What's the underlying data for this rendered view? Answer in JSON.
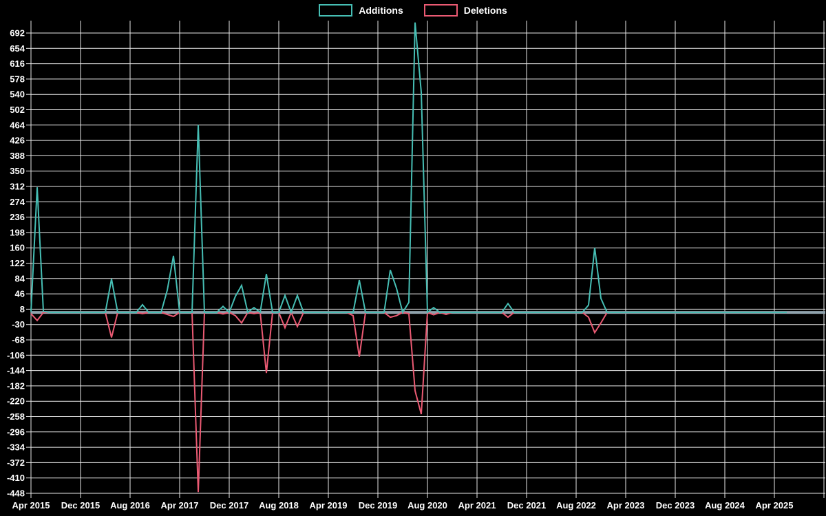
{
  "legend": {
    "items": [
      {
        "label": "Additions",
        "color": "#46beb4"
      },
      {
        "label": "Deletions",
        "color": "#eb5a73"
      }
    ]
  },
  "colors": {
    "background": "#000000",
    "grid": "#e9e9e9",
    "zero_axis_line": "#8fa2ac",
    "additions": "#46beb4",
    "deletions": "#eb5a73",
    "text": "#ffffff"
  },
  "chart_data": {
    "type": "line",
    "title": "",
    "xlabel": "",
    "ylabel": "",
    "grid": true,
    "legend_position": "top-center",
    "ylim": [
      -448,
      692
    ],
    "y_ticks": [
      692,
      654,
      616,
      578,
      540,
      502,
      464,
      426,
      388,
      350,
      312,
      274,
      236,
      198,
      160,
      122,
      84,
      46,
      8,
      -30,
      -68,
      -106,
      -144,
      -182,
      -220,
      -258,
      -296,
      -334,
      -372,
      -410,
      -448
    ],
    "x_start": "Apr 2015",
    "x_months_count": 123,
    "x_tick_interval_months": 8,
    "x_tick_labels": [
      "Apr 2015",
      "Dec 2015",
      "Aug 2016",
      "Apr 2017",
      "Dec 2017",
      "Aug 2018",
      "Apr 2019",
      "Dec 2019",
      "Aug 2020",
      "Apr 2021",
      "Dec 2021",
      "Aug 2022",
      "Apr 2023",
      "Dec 2023",
      "Aug 2024",
      "Apr 2025"
    ],
    "series": [
      {
        "name": "Additions",
        "color": "#46beb4",
        "values": [
          2,
          310,
          3,
          0,
          0,
          0,
          0,
          0,
          0,
          0,
          0,
          0,
          0,
          83,
          0,
          0,
          0,
          0,
          19,
          0,
          0,
          0,
          55,
          140,
          0,
          0,
          0,
          464,
          0,
          0,
          0,
          15,
          0,
          40,
          67,
          0,
          12,
          0,
          95,
          0,
          0,
          42,
          0,
          42,
          0,
          0,
          0,
          0,
          0,
          0,
          0,
          0,
          0,
          80,
          0,
          0,
          0,
          0,
          105,
          60,
          0,
          25,
          718,
          545,
          0,
          12,
          0,
          0,
          0,
          0,
          0,
          0,
          0,
          0,
          0,
          0,
          0,
          22,
          0,
          0,
          0,
          0,
          0,
          0,
          0,
          0,
          0,
          0,
          0,
          0,
          18,
          160,
          35,
          0,
          0,
          0,
          0,
          0,
          0,
          0,
          0,
          0,
          0,
          0,
          0,
          0,
          0,
          0,
          0,
          0,
          0,
          0,
          0,
          0,
          0,
          0,
          0,
          0,
          0,
          0,
          0,
          0,
          0
        ]
      },
      {
        "name": "Deletions",
        "color": "#eb5a73",
        "values": [
          -3,
          -20,
          0,
          0,
          0,
          0,
          0,
          0,
          0,
          0,
          0,
          0,
          0,
          -62,
          0,
          0,
          0,
          0,
          -3,
          0,
          0,
          0,
          -5,
          -10,
          0,
          0,
          0,
          -445,
          0,
          0,
          0,
          -4,
          0,
          -8,
          -26,
          0,
          -3,
          0,
          -150,
          0,
          0,
          -38,
          0,
          -35,
          0,
          0,
          0,
          0,
          0,
          0,
          0,
          0,
          -8,
          -110,
          0,
          0,
          0,
          0,
          -12,
          -8,
          0,
          -3,
          -194,
          -252,
          0,
          -6,
          0,
          -5,
          0,
          0,
          0,
          0,
          0,
          0,
          0,
          0,
          0,
          -12,
          0,
          0,
          0,
          0,
          0,
          0,
          0,
          0,
          0,
          0,
          0,
          0,
          -12,
          -50,
          -26,
          0,
          0,
          0,
          0,
          0,
          0,
          0,
          0,
          0,
          0,
          0,
          0,
          0,
          0,
          0,
          0,
          0,
          0,
          0,
          0,
          0,
          0,
          0,
          0,
          0,
          0,
          0,
          0,
          0,
          0
        ]
      }
    ]
  }
}
